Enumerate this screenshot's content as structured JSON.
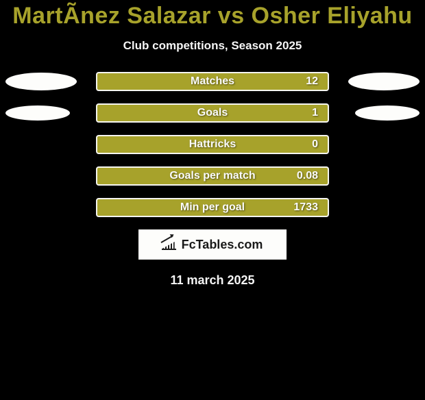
{
  "colors": {
    "background": "#000000",
    "accent": "#a7a22b",
    "pill": "#fdfdfb",
    "bar_border": "#f5f5f0",
    "text_light": "#fafafa",
    "text_dark": "#1a1a1a"
  },
  "typography": {
    "title_fontsize": 34,
    "subtitle_fontsize": 17,
    "bar_label_fontsize": 16,
    "date_fontsize": 18,
    "logo_fontsize": 18,
    "font_family": "Arial"
  },
  "title": "MartÃ­nez Salazar vs Osher Eliyahu",
  "subtitle": "Club competitions, Season 2025",
  "stats": [
    {
      "label": "Matches",
      "value": "12",
      "left_pill": "big",
      "right_pill": "big"
    },
    {
      "label": "Goals",
      "value": "1",
      "left_pill": "small",
      "right_pill": "small"
    },
    {
      "label": "Hattricks",
      "value": "0",
      "left_pill": "tiny",
      "right_pill": "tiny"
    },
    {
      "label": "Goals per match",
      "value": "0.08",
      "left_pill": "tiny",
      "right_pill": "tiny"
    },
    {
      "label": "Min per goal",
      "value": "1733",
      "left_pill": "tiny",
      "right_pill": "tiny"
    }
  ],
  "logo_text": "FcTables.com",
  "date": "11 march 2025"
}
